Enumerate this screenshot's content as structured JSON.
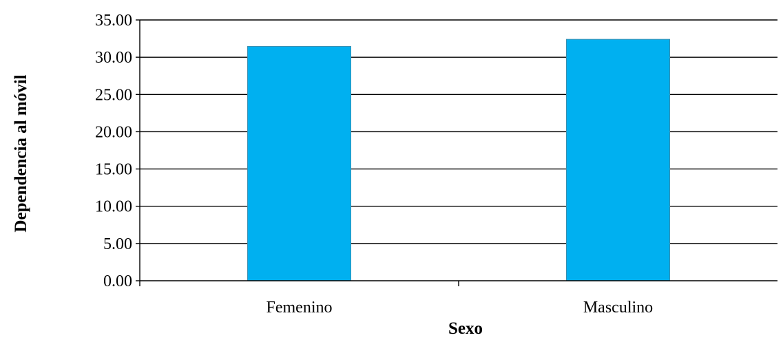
{
  "chart_data": {
    "type": "bar",
    "title": "",
    "xlabel": "Sexo",
    "ylabel": "Dependencia al móvil",
    "categories": [
      "Femenino",
      "Masculino"
    ],
    "values": [
      31.45,
      32.4
    ],
    "ylim": [
      0,
      35
    ],
    "yticks": [
      "0.00",
      "5.00",
      "10.00",
      "15.00",
      "20.00",
      "25.00",
      "30.00",
      "35.00"
    ],
    "grid": true,
    "legend": "none",
    "colors": {
      "bar_fill": "#00b0f0",
      "bar_stroke": "#3a8fb0",
      "axis": "#000000",
      "grid": "#000000"
    }
  }
}
